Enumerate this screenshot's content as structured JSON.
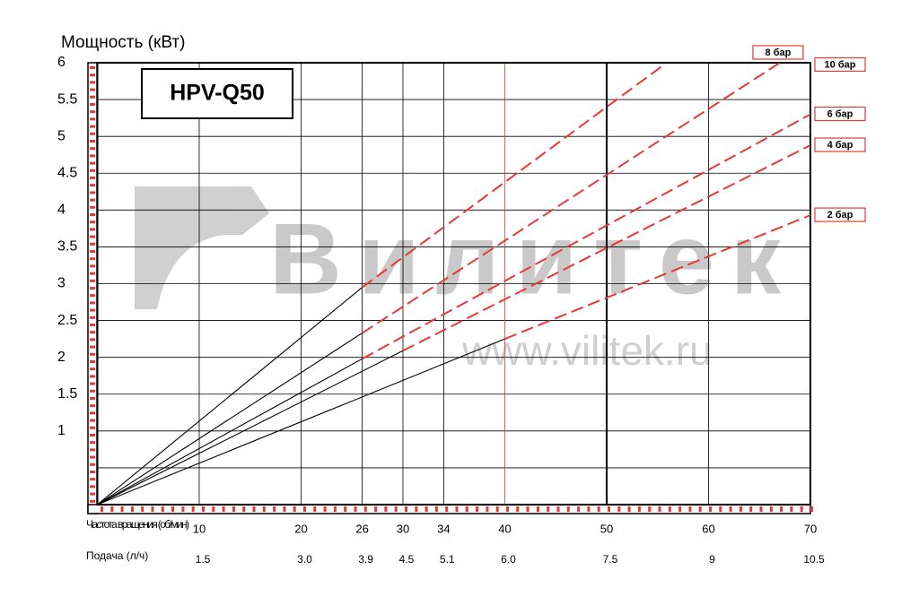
{
  "chart_data": {
    "type": "line",
    "title": "HPV-Q50",
    "y_label": "Мощность (кВт)",
    "x_label": "Частота вращения (об/мин)",
    "x2_label": "Подача (л/ч)",
    "watermark": "Вилитек",
    "watermark_url": "www.vilitek.ru",
    "xlim": [
      0,
      70
    ],
    "ylim": [
      0,
      6
    ],
    "xticks": [
      10,
      20,
      26,
      30,
      34,
      40,
      50,
      60,
      70
    ],
    "x2_labels": [
      "1.5",
      "3.0",
      "3.9",
      "4.5",
      "5.1",
      "6.0",
      "7.5",
      "9",
      "10.5"
    ],
    "yticks": [
      1,
      1.5,
      2,
      2.5,
      3,
      3.5,
      4,
      4.5,
      5,
      5.5,
      6
    ],
    "grid": true,
    "marker_lines": [
      {
        "x": 40,
        "color": "#e53935"
      },
      {
        "x": 50,
        "color": "#000000"
      }
    ],
    "solid_color": "#000000",
    "dashed_color": "#e53935",
    "series": [
      {
        "name": "10 бар",
        "x": [
          0,
          26,
          55.6
        ],
        "values": [
          0,
          2.95,
          5.97
        ]
      },
      {
        "name": "8 бар",
        "x": [
          0,
          26,
          67
        ],
        "values": [
          0,
          2.33,
          6
        ]
      },
      {
        "name": "6 бар",
        "x": [
          0,
          26,
          70
        ],
        "values": [
          0,
          1.98,
          5.3
        ]
      },
      {
        "name": "4 бар",
        "x": [
          0,
          30,
          70
        ],
        "values": [
          0,
          2.09,
          4.88
        ]
      },
      {
        "name": "2 бар",
        "x": [
          0,
          40,
          70
        ],
        "values": [
          0,
          2.25,
          3.93
        ]
      }
    ]
  }
}
